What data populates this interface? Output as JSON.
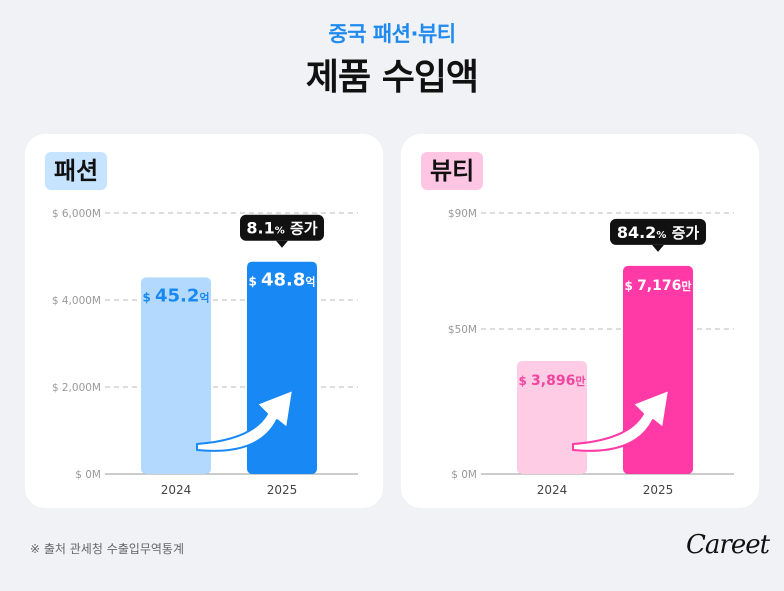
{
  "header": {
    "subtitle": "중국 패션·뷰티",
    "title": "제품 수입액"
  },
  "colors": {
    "fashion_light": "#b3d9ff",
    "fashion_dark": "#1888f5",
    "fashion_text": "#1a8af0",
    "fashion_badge_bg": "#c6e4ff",
    "beauty_light": "#ffcce6",
    "beauty_dark": "#ff3aa6",
    "beauty_text": "#f0459f",
    "beauty_badge_bg": "#ffc6e3",
    "callout_bg": "#111111"
  },
  "footer": {
    "source": "※ 출처 관세청 수출입무역통계",
    "logo": "Careet"
  },
  "chart_data": [
    {
      "type": "bar",
      "panel_label": "패션",
      "categories": [
        "2024",
        "2025"
      ],
      "values": [
        4520,
        4880
      ],
      "ylim": [
        0,
        6000
      ],
      "ticks": [
        0,
        2000,
        4000,
        6000
      ],
      "tick_labels": [
        "$ 0M",
        "$ 2,000M",
        "$ 4,000M",
        "$ 6,000M"
      ],
      "bar_labels": [
        {
          "prefix": "$",
          "number": "45.2",
          "unit": "억"
        },
        {
          "prefix": "$",
          "number": "48.8",
          "unit": "억"
        }
      ],
      "callout": {
        "number": "8.1",
        "unit": "%",
        "text": "증가"
      }
    },
    {
      "type": "bar",
      "panel_label": "뷰티",
      "categories": [
        "2024",
        "2025"
      ],
      "values": [
        38.96,
        71.76
      ],
      "ylim": [
        0,
        90
      ],
      "ticks": [
        0,
        50,
        90
      ],
      "tick_labels": [
        "$ 0M",
        "$50M",
        "$90M"
      ],
      "bar_labels": [
        {
          "prefix": "$",
          "number": "3,896",
          "unit": "만"
        },
        {
          "prefix": "$",
          "number": "7,176",
          "unit": "만"
        }
      ],
      "callout": {
        "number": "84.2",
        "unit": "%",
        "text": "증가"
      }
    }
  ]
}
